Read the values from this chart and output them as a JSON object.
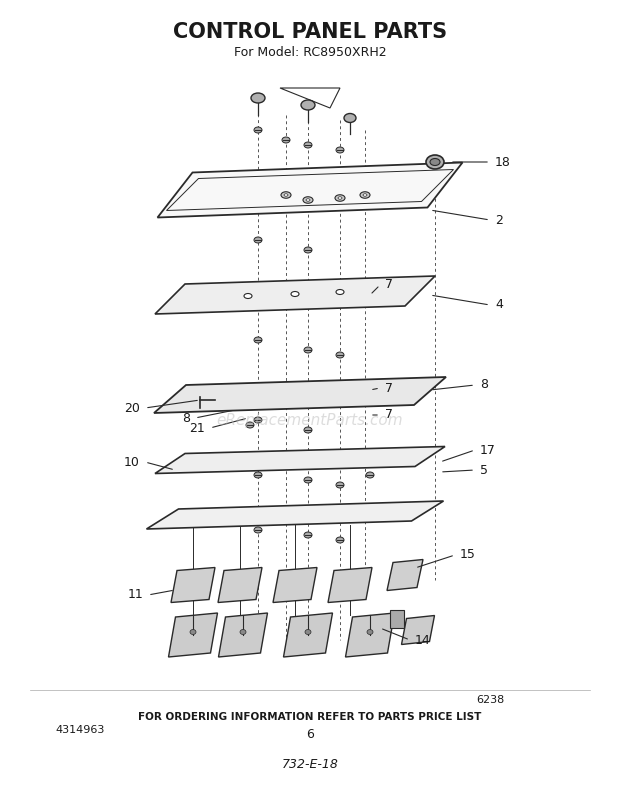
{
  "title": "CONTROL PANEL PARTS",
  "subtitle": "For Model: RC8950XRH2",
  "footer_code": "6238",
  "footer_ref": "4314963",
  "footer_page": "6",
  "footer_order": "FOR ORDERING INFORMATION REFER TO PARTS PRICE LIST",
  "footer_part": "732-E-18",
  "watermark": "eReplacementParts.com",
  "bg_color": "#ffffff",
  "line_color": "#2a2a2a",
  "text_color": "#1a1a1a"
}
